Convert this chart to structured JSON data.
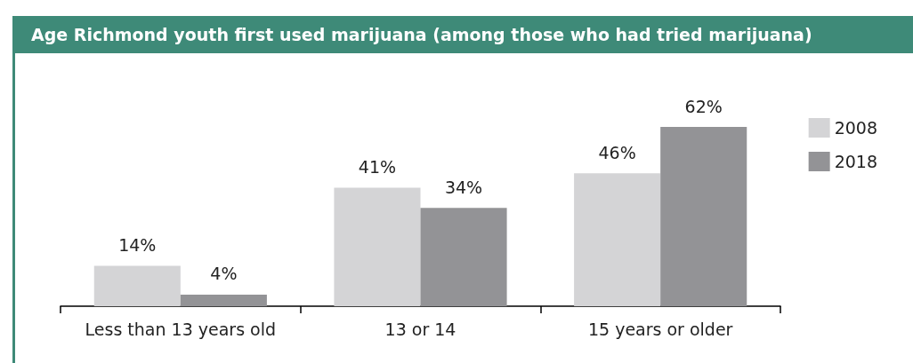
{
  "chart_data": {
    "type": "bar",
    "title": "Age Richmond youth first used marijuana (among those who had tried marijuana)",
    "categories": [
      "Less than 13 years old",
      "13 or 14",
      "15 years or older"
    ],
    "series": [
      {
        "name": "2008",
        "color": "#d4d4d6",
        "values": [
          14,
          41,
          46
        ],
        "value_labels": [
          "14%",
          "41%",
          "46%"
        ]
      },
      {
        "name": "2018",
        "color": "#939396",
        "values": [
          4,
          34,
          62
        ],
        "value_labels": [
          "4%",
          "34%",
          "62%"
        ]
      }
    ],
    "legend": "top right"
  }
}
